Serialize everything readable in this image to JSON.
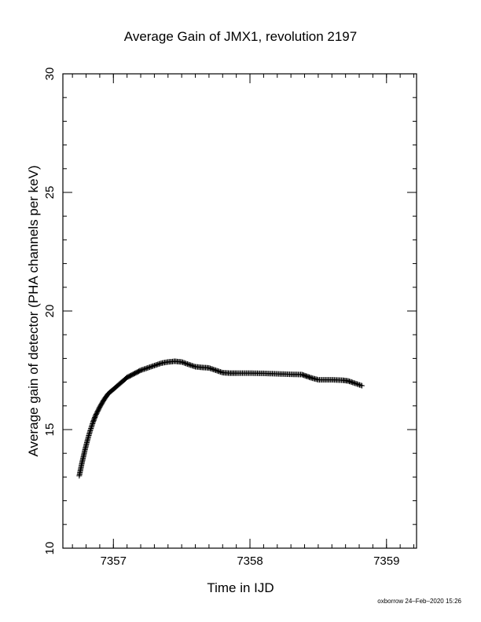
{
  "chart_data": {
    "type": "scatter",
    "title": "Average Gain of JMX1, revolution 2197",
    "xlabel": "Time in IJD",
    "ylabel": "Average gain of detector (PHA channels per keV)",
    "xlim": [
      7356.63,
      7359.22
    ],
    "ylim": [
      10,
      30
    ],
    "x_ticks": [
      7357,
      7358,
      7359
    ],
    "y_ticks": [
      10,
      15,
      20,
      25,
      30
    ],
    "x_minor_step": 0.1,
    "y_minor_step": 1,
    "marker": "+",
    "series_color": "#000000",
    "grid": false,
    "curve": [
      [
        7356.75,
        13.05
      ],
      [
        7356.77,
        13.6
      ],
      [
        7356.79,
        14.1
      ],
      [
        7356.81,
        14.55
      ],
      [
        7356.83,
        14.95
      ],
      [
        7356.85,
        15.3
      ],
      [
        7356.87,
        15.6
      ],
      [
        7356.9,
        15.95
      ],
      [
        7356.93,
        16.25
      ],
      [
        7356.96,
        16.5
      ],
      [
        7357.0,
        16.7
      ],
      [
        7357.05,
        16.95
      ],
      [
        7357.1,
        17.2
      ],
      [
        7357.15,
        17.35
      ],
      [
        7357.2,
        17.5
      ],
      [
        7357.25,
        17.6
      ],
      [
        7357.3,
        17.7
      ],
      [
        7357.35,
        17.8
      ],
      [
        7357.4,
        17.85
      ],
      [
        7357.45,
        17.88
      ],
      [
        7357.5,
        17.85
      ],
      [
        7357.55,
        17.75
      ],
      [
        7357.6,
        17.65
      ],
      [
        7357.65,
        17.62
      ],
      [
        7357.7,
        17.6
      ],
      [
        7357.75,
        17.5
      ],
      [
        7357.8,
        17.4
      ],
      [
        7357.85,
        17.38
      ],
      [
        7357.9,
        17.38
      ],
      [
        7358.0,
        17.38
      ],
      [
        7358.1,
        17.37
      ],
      [
        7358.2,
        17.35
      ],
      [
        7358.3,
        17.33
      ],
      [
        7358.38,
        17.32
      ],
      [
        7358.45,
        17.18
      ],
      [
        7358.5,
        17.1
      ],
      [
        7358.6,
        17.1
      ],
      [
        7358.68,
        17.08
      ],
      [
        7358.72,
        17.05
      ],
      [
        7358.76,
        16.97
      ],
      [
        7358.82,
        16.85
      ]
    ]
  },
  "footer": "oxborrow 24–Feb–2020 15:26"
}
